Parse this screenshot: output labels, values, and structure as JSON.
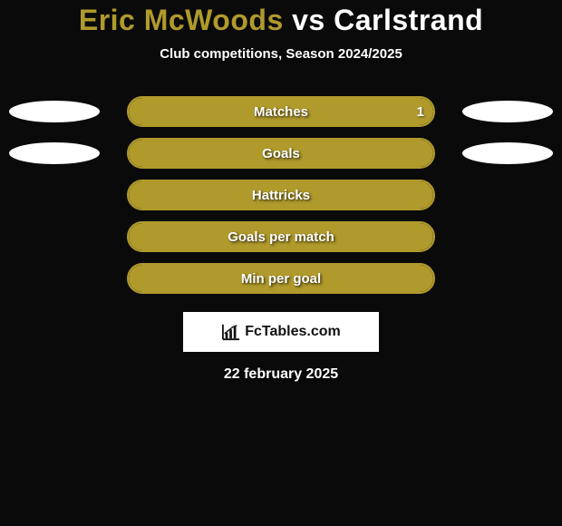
{
  "header": {
    "player1": "Eric McWoods",
    "vs": "vs",
    "player2": "Carlstrand",
    "player1_color": "#b09a2c",
    "player2_color": "#ffffff",
    "subtitle": "Club competitions, Season 2024/2025"
  },
  "chart": {
    "background_color": "#0a0a0a",
    "bar_track_width": 340,
    "bar_track_height": 34,
    "bar_border_radius": 18,
    "ellipse_width": 100,
    "ellipse_height": 24,
    "rows": [
      {
        "label": "Matches",
        "border_color": "#b09a2c",
        "fill_color": "#b09a2c",
        "fill_pct": 100,
        "value_right": "1",
        "ellipse_left_color": "#ffffff",
        "ellipse_right_color": "#ffffff"
      },
      {
        "label": "Goals",
        "border_color": "#b09a2c",
        "fill_color": "#b09a2c",
        "fill_pct": 100,
        "ellipse_left_color": "#ffffff",
        "ellipse_right_color": "#ffffff"
      },
      {
        "label": "Hattricks",
        "border_color": "#b09a2c",
        "fill_color": "#b09a2c",
        "fill_pct": 100
      },
      {
        "label": "Goals per match",
        "border_color": "#b09a2c",
        "fill_color": "#b09a2c",
        "fill_pct": 100
      },
      {
        "label": "Min per goal",
        "border_color": "#b09a2c",
        "fill_color": "#b09a2c",
        "fill_pct": 100
      }
    ]
  },
  "footer": {
    "logo_text": "FcTables.com",
    "date": "22 february 2025"
  },
  "style": {
    "title_fontsize": 32,
    "subtitle_fontsize": 15,
    "label_fontsize": 15,
    "date_fontsize": 16
  }
}
